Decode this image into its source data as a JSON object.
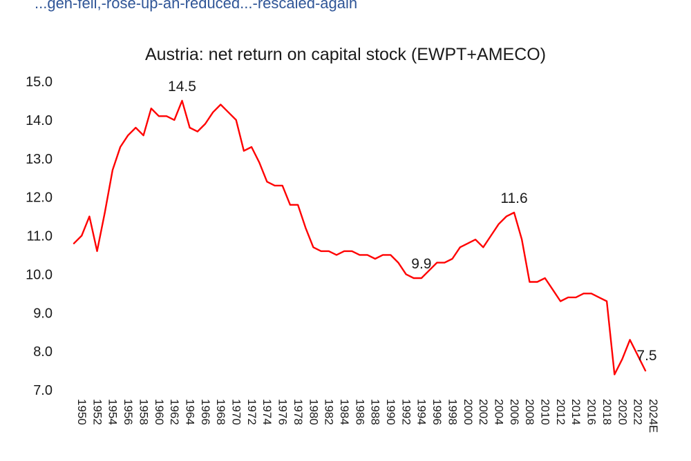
{
  "caption": "...gen-fell,-rose-up-an-reduced...-rescaled-again",
  "chart_data": {
    "type": "line",
    "title": "Austria: net return on capital stock (EWPT+AMECO)",
    "xlabel": "",
    "ylabel": "",
    "ylim": [
      7.0,
      15.0
    ],
    "yticks": [
      "15.0",
      "14.0",
      "13.0",
      "12.0",
      "11.0",
      "10.0",
      "9.0",
      "8.0",
      "7.0"
    ],
    "ytick_values": [
      15,
      14,
      13,
      12,
      11,
      10,
      9,
      8,
      7
    ],
    "line_color": "#ff0000",
    "categories": [
      "1950",
      "1951",
      "1952",
      "1953",
      "1954",
      "1955",
      "1956",
      "1957",
      "1958",
      "1959",
      "1960",
      "1961",
      "1962",
      "1963",
      "1964",
      "1965",
      "1966",
      "1967",
      "1968",
      "1969",
      "1970",
      "1971",
      "1972",
      "1973",
      "1974",
      "1975",
      "1976",
      "1977",
      "1978",
      "1979",
      "1980",
      "1981",
      "1982",
      "1983",
      "1984",
      "1985",
      "1986",
      "1987",
      "1988",
      "1989",
      "1990",
      "1991",
      "1992",
      "1993",
      "1994",
      "1995",
      "1996",
      "1997",
      "1998",
      "1999",
      "2000",
      "2001",
      "2002",
      "2003",
      "2004",
      "2005",
      "2006",
      "2007",
      "2008",
      "2009",
      "2010",
      "2011",
      "2012",
      "2013",
      "2014",
      "2015",
      "2016",
      "2017",
      "2018",
      "2019",
      "2020",
      "2021",
      "2022",
      "2023",
      "2024E"
    ],
    "tick_labels": [
      "1950",
      "1952",
      "1954",
      "1956",
      "1958",
      "1960",
      "1962",
      "1964",
      "1966",
      "1968",
      "1970",
      "1972",
      "1974",
      "1976",
      "1978",
      "1980",
      "1982",
      "1984",
      "1986",
      "1988",
      "1990",
      "1992",
      "1994",
      "1996",
      "1998",
      "2000",
      "2002",
      "2004",
      "2006",
      "2008",
      "2010",
      "2012",
      "2014",
      "2016",
      "2018",
      "2020",
      "2022",
      "2024E"
    ],
    "values": [
      10.8,
      11.0,
      11.5,
      10.6,
      11.6,
      12.7,
      13.3,
      13.6,
      13.8,
      13.6,
      14.3,
      14.1,
      14.1,
      14.0,
      14.5,
      13.8,
      13.7,
      13.9,
      14.2,
      14.4,
      14.2,
      14.0,
      13.2,
      13.3,
      12.9,
      12.4,
      12.3,
      12.3,
      11.8,
      11.8,
      11.2,
      10.7,
      10.6,
      10.6,
      10.5,
      10.6,
      10.6,
      10.5,
      10.5,
      10.4,
      10.5,
      10.5,
      10.3,
      10.0,
      9.9,
      9.9,
      10.1,
      10.3,
      10.3,
      10.4,
      10.7,
      10.8,
      10.9,
      10.7,
      11.0,
      11.3,
      11.5,
      11.6,
      10.9,
      9.8,
      9.8,
      9.9,
      9.6,
      9.3,
      9.4,
      9.4,
      9.5,
      9.5,
      9.4,
      9.3,
      7.4,
      7.8,
      8.3,
      7.9,
      7.5
    ],
    "annotations": [
      {
        "label": "14.5",
        "category": "1964"
      },
      {
        "label": "9.9",
        "category": "1995"
      },
      {
        "label": "11.6",
        "category": "2007"
      },
      {
        "label": "7.5",
        "category": "2024E"
      }
    ]
  }
}
